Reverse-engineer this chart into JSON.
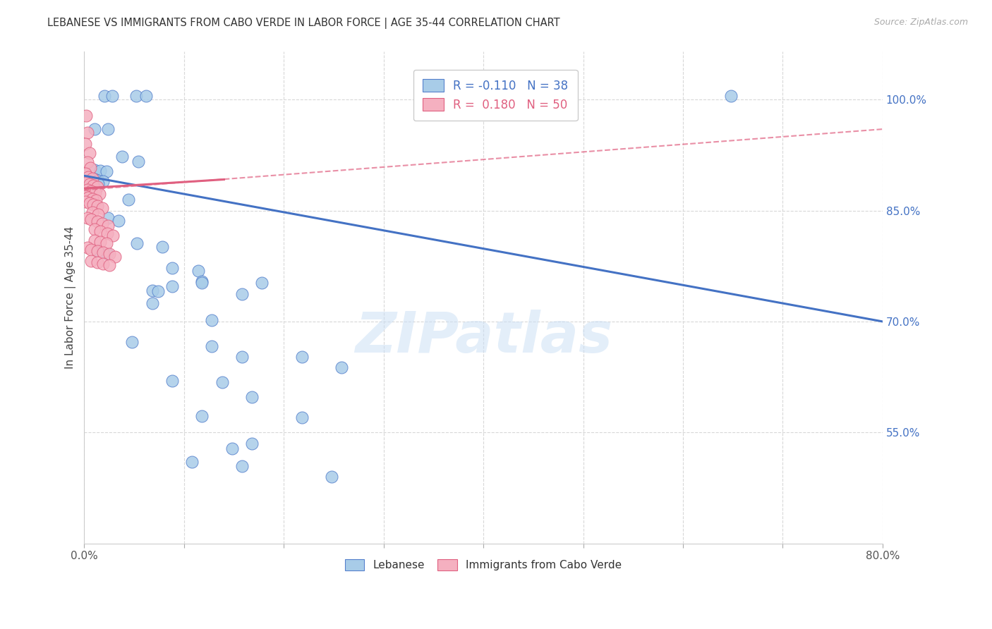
{
  "title": "LEBANESE VS IMMIGRANTS FROM CABO VERDE IN LABOR FORCE | AGE 35-44 CORRELATION CHART",
  "source": "Source: ZipAtlas.com",
  "ylabel_left": "In Labor Force | Age 35-44",
  "xlim": [
    0.0,
    0.8
  ],
  "ylim": [
    0.4,
    1.065
  ],
  "xticks": [
    0.0,
    0.1,
    0.2,
    0.3,
    0.4,
    0.5,
    0.6,
    0.7,
    0.8
  ],
  "yticks_right": [
    0.55,
    0.7,
    0.85,
    1.0
  ],
  "ytick_labels_right": [
    "55.0%",
    "70.0%",
    "85.0%",
    "100.0%"
  ],
  "legend_label1": "Lebanese",
  "legend_label2": "Immigrants from Cabo Verde",
  "blue_color": "#a8cce8",
  "pink_color": "#f5b0c0",
  "blue_edge_color": "#5580cc",
  "pink_edge_color": "#e06080",
  "blue_line_color": "#4472c4",
  "pink_line_color": "#e06080",
  "watermark": "ZIPatlas",
  "blue_dots": [
    [
      0.02,
      1.005
    ],
    [
      0.028,
      1.005
    ],
    [
      0.052,
      1.005
    ],
    [
      0.062,
      1.005
    ],
    [
      0.01,
      0.96
    ],
    [
      0.024,
      0.96
    ],
    [
      0.038,
      0.923
    ],
    [
      0.054,
      0.916
    ],
    [
      0.01,
      0.905
    ],
    [
      0.016,
      0.904
    ],
    [
      0.022,
      0.903
    ],
    [
      0.006,
      0.893
    ],
    [
      0.01,
      0.892
    ],
    [
      0.014,
      0.891
    ],
    [
      0.019,
      0.89
    ],
    [
      0.004,
      0.888
    ],
    [
      0.007,
      0.887
    ],
    [
      0.01,
      0.887
    ],
    [
      0.014,
      0.886
    ],
    [
      0.002,
      0.884
    ],
    [
      0.005,
      0.883
    ],
    [
      0.008,
      0.883
    ],
    [
      0.001,
      0.88
    ],
    [
      0.003,
      0.879
    ],
    [
      0.044,
      0.865
    ],
    [
      0.024,
      0.84
    ],
    [
      0.034,
      0.836
    ],
    [
      0.053,
      0.806
    ],
    [
      0.078,
      0.801
    ],
    [
      0.013,
      0.796
    ],
    [
      0.023,
      0.791
    ],
    [
      0.088,
      0.772
    ],
    [
      0.114,
      0.769
    ],
    [
      0.118,
      0.754
    ],
    [
      0.178,
      0.752
    ],
    [
      0.068,
      0.742
    ],
    [
      0.074,
      0.741
    ],
    [
      0.158,
      0.737
    ],
    [
      0.118,
      0.752
    ],
    [
      0.088,
      0.748
    ],
    [
      0.068,
      0.725
    ],
    [
      0.128,
      0.702
    ],
    [
      0.048,
      0.672
    ],
    [
      0.128,
      0.667
    ],
    [
      0.158,
      0.652
    ],
    [
      0.218,
      0.652
    ],
    [
      0.258,
      0.638
    ],
    [
      0.088,
      0.62
    ],
    [
      0.138,
      0.618
    ],
    [
      0.168,
      0.598
    ],
    [
      0.118,
      0.572
    ],
    [
      0.218,
      0.57
    ],
    [
      0.168,
      0.535
    ],
    [
      0.148,
      0.528
    ],
    [
      0.108,
      0.51
    ],
    [
      0.158,
      0.505
    ],
    [
      0.248,
      0.49
    ],
    [
      0.648,
      1.005
    ]
  ],
  "pink_dots": [
    [
      0.002,
      0.978
    ],
    [
      0.003,
      0.955
    ],
    [
      0.001,
      0.94
    ],
    [
      0.005,
      0.928
    ],
    [
      0.003,
      0.915
    ],
    [
      0.006,
      0.908
    ],
    [
      0.001,
      0.9
    ],
    [
      0.004,
      0.895
    ],
    [
      0.008,
      0.893
    ],
    [
      0.002,
      0.888
    ],
    [
      0.005,
      0.886
    ],
    [
      0.009,
      0.884
    ],
    [
      0.013,
      0.882
    ],
    [
      0.003,
      0.878
    ],
    [
      0.007,
      0.876
    ],
    [
      0.011,
      0.874
    ],
    [
      0.015,
      0.872
    ],
    [
      0.001,
      0.87
    ],
    [
      0.004,
      0.868
    ],
    [
      0.008,
      0.866
    ],
    [
      0.012,
      0.864
    ],
    [
      0.001,
      0.862
    ],
    [
      0.005,
      0.86
    ],
    [
      0.009,
      0.858
    ],
    [
      0.013,
      0.856
    ],
    [
      0.018,
      0.853
    ],
    [
      0.008,
      0.848
    ],
    [
      0.014,
      0.845
    ],
    [
      0.003,
      0.84
    ],
    [
      0.007,
      0.838
    ],
    [
      0.013,
      0.835
    ],
    [
      0.018,
      0.832
    ],
    [
      0.024,
      0.83
    ],
    [
      0.01,
      0.825
    ],
    [
      0.016,
      0.822
    ],
    [
      0.023,
      0.819
    ],
    [
      0.029,
      0.816
    ],
    [
      0.01,
      0.81
    ],
    [
      0.016,
      0.808
    ],
    [
      0.022,
      0.806
    ],
    [
      0.003,
      0.8
    ],
    [
      0.007,
      0.797
    ],
    [
      0.013,
      0.795
    ],
    [
      0.019,
      0.793
    ],
    [
      0.025,
      0.791
    ],
    [
      0.031,
      0.788
    ],
    [
      0.007,
      0.782
    ],
    [
      0.013,
      0.78
    ],
    [
      0.019,
      0.778
    ],
    [
      0.025,
      0.776
    ]
  ],
  "blue_trendline": [
    0.0,
    0.897,
    0.8,
    0.7
  ],
  "pink_trendline_solid": [
    0.0,
    0.88,
    0.14,
    0.892
  ],
  "pink_trendline_dashed": [
    0.0,
    0.878,
    0.8,
    0.96
  ],
  "background_color": "#ffffff",
  "grid_color": "#d8d8d8"
}
